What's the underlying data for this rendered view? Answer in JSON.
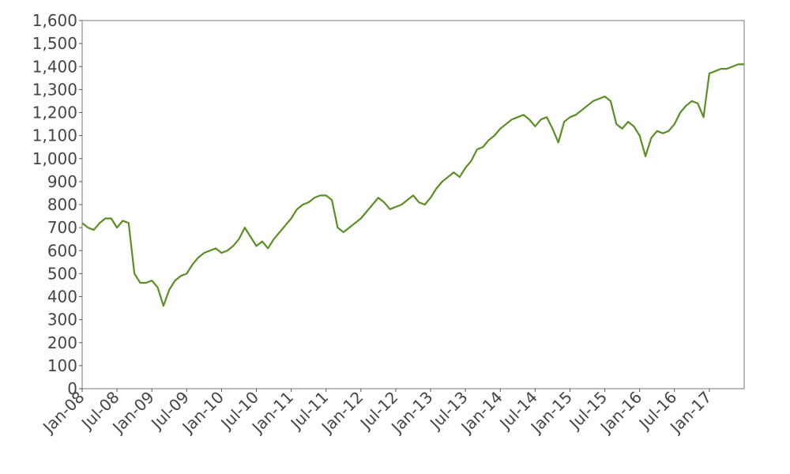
{
  "chart_data": {
    "type": "line",
    "color": "#5b8e23",
    "x": [
      "2008-01",
      "2008-02",
      "2008-03",
      "2008-04",
      "2008-05",
      "2008-06",
      "2008-07",
      "2008-08",
      "2008-09",
      "2008-10",
      "2008-11",
      "2008-12",
      "2009-01",
      "2009-02",
      "2009-03",
      "2009-04",
      "2009-05",
      "2009-06",
      "2009-07",
      "2009-08",
      "2009-09",
      "2009-10",
      "2009-11",
      "2009-12",
      "2010-01",
      "2010-02",
      "2010-03",
      "2010-04",
      "2010-05",
      "2010-06",
      "2010-07",
      "2010-08",
      "2010-09",
      "2010-10",
      "2010-11",
      "2010-12",
      "2011-01",
      "2011-02",
      "2011-03",
      "2011-04",
      "2011-05",
      "2011-06",
      "2011-07",
      "2011-08",
      "2011-09",
      "2011-10",
      "2011-11",
      "2011-12",
      "2012-01",
      "2012-02",
      "2012-03",
      "2012-04",
      "2012-05",
      "2012-06",
      "2012-07",
      "2012-08",
      "2012-09",
      "2012-10",
      "2012-11",
      "2012-12",
      "2013-01",
      "2013-02",
      "2013-03",
      "2013-04",
      "2013-05",
      "2013-06",
      "2013-07",
      "2013-08",
      "2013-09",
      "2013-10",
      "2013-11",
      "2013-12",
      "2014-01",
      "2014-02",
      "2014-03",
      "2014-04",
      "2014-05",
      "2014-06",
      "2014-07",
      "2014-08",
      "2014-09",
      "2014-10",
      "2014-11",
      "2014-12",
      "2015-01",
      "2015-02",
      "2015-03",
      "2015-04",
      "2015-05",
      "2015-06",
      "2015-07",
      "2015-08",
      "2015-09",
      "2015-10",
      "2015-11",
      "2015-12",
      "2016-01",
      "2016-02",
      "2016-03",
      "2016-04",
      "2016-05",
      "2016-06",
      "2016-07",
      "2016-08",
      "2016-09",
      "2016-10",
      "2016-11",
      "2016-12",
      "2017-01",
      "2017-02",
      "2017-03",
      "2017-04",
      "2017-05",
      "2017-06",
      "2017-07"
    ],
    "values": [
      720,
      700,
      690,
      720,
      740,
      740,
      700,
      730,
      720,
      500,
      460,
      460,
      470,
      440,
      360,
      430,
      470,
      490,
      500,
      540,
      570,
      590,
      600,
      610,
      590,
      600,
      620,
      650,
      700,
      660,
      620,
      640,
      610,
      650,
      680,
      710,
      740,
      780,
      800,
      810,
      830,
      840,
      840,
      820,
      700,
      680,
      700,
      720,
      740,
      770,
      800,
      830,
      810,
      780,
      790,
      800,
      820,
      840,
      810,
      800,
      830,
      870,
      900,
      920,
      940,
      920,
      960,
      990,
      1040,
      1050,
      1080,
      1100,
      1130,
      1150,
      1170,
      1180,
      1190,
      1170,
      1140,
      1170,
      1180,
      1130,
      1070,
      1160,
      1180,
      1190,
      1210,
      1230,
      1250,
      1260,
      1270,
      1250,
      1150,
      1130,
      1160,
      1140,
      1100,
      1010,
      1090,
      1120,
      1110,
      1120,
      1150,
      1200,
      1230,
      1250,
      1240,
      1180,
      1370,
      1380,
      1390,
      1390,
      1400,
      1410,
      1410
    ],
    "xlim": [
      "2008-01",
      "2017-07"
    ],
    "xticks": [
      {
        "value": "2008-01",
        "label": "Jan-08"
      },
      {
        "value": "2008-07",
        "label": "Jul-08"
      },
      {
        "value": "2009-01",
        "label": "Jan-09"
      },
      {
        "value": "2009-07",
        "label": "Jul-09"
      },
      {
        "value": "2010-01",
        "label": "Jan-10"
      },
      {
        "value": "2010-07",
        "label": "Jul-10"
      },
      {
        "value": "2011-01",
        "label": "Jan-11"
      },
      {
        "value": "2011-07",
        "label": "Jul-11"
      },
      {
        "value": "2012-01",
        "label": "Jan-12"
      },
      {
        "value": "2012-07",
        "label": "Jul-12"
      },
      {
        "value": "2013-01",
        "label": "Jan-13"
      },
      {
        "value": "2013-07",
        "label": "Jul-13"
      },
      {
        "value": "2014-01",
        "label": "Jan-14"
      },
      {
        "value": "2014-07",
        "label": "Jul-14"
      },
      {
        "value": "2015-01",
        "label": "Jan-15"
      },
      {
        "value": "2015-07",
        "label": "Jul-15"
      },
      {
        "value": "2016-01",
        "label": "Jan-16"
      },
      {
        "value": "2016-07",
        "label": "Jul-16"
      },
      {
        "value": "2017-01",
        "label": "Jan-17"
      }
    ],
    "ylim": [
      0,
      1600
    ],
    "yticks": [
      0,
      100,
      200,
      300,
      400,
      500,
      600,
      700,
      800,
      900,
      {
        "value": 1000,
        "label": "1,000"
      },
      {
        "value": 1100,
        "label": "1,100"
      },
      {
        "value": 1200,
        "label": "1,200"
      },
      {
        "value": 1300,
        "label": "1,300"
      },
      {
        "value": 1400,
        "label": "1,400"
      },
      {
        "value": 1500,
        "label": "1,500"
      },
      {
        "value": 1600,
        "label": "1,600"
      }
    ]
  }
}
